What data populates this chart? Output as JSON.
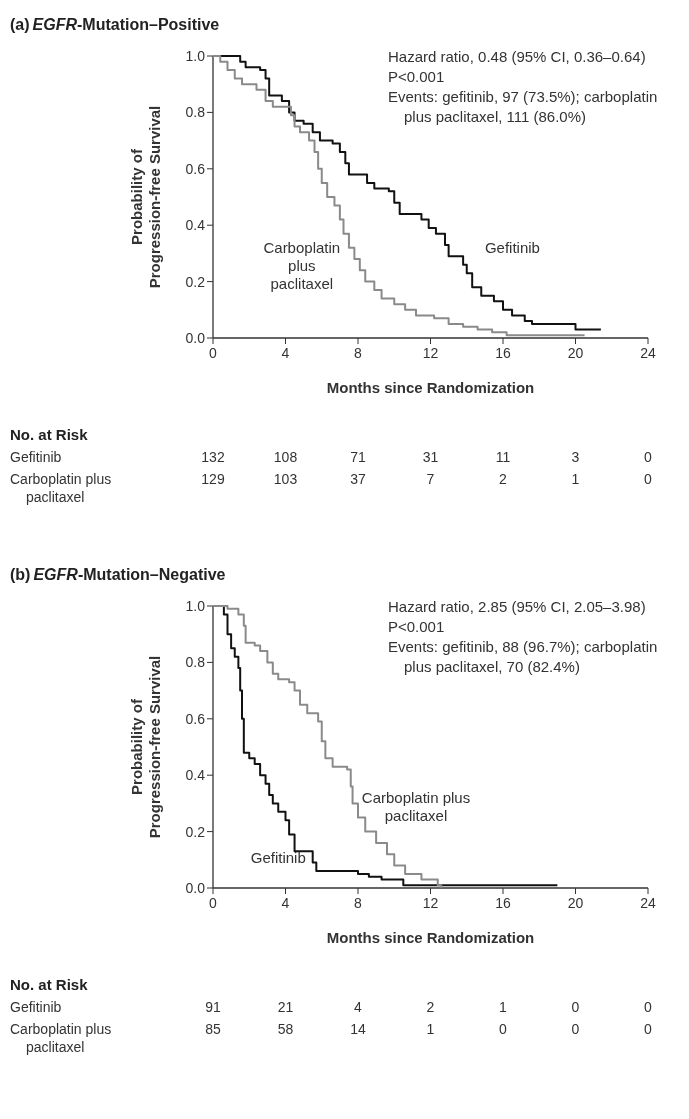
{
  "chart_data": [
    {
      "type": "step",
      "title": "(a) EGFR-Mutation–Positive",
      "xlabel": "Months since Randomization",
      "ylabel": "Probability of Progression-free Survival",
      "xlim": [
        0,
        24
      ],
      "xticks": [
        0,
        4,
        8,
        12,
        16,
        20,
        24
      ],
      "ylim": [
        0,
        1
      ],
      "yticks": [
        {
          "value": 0,
          "label": "0.0"
        },
        {
          "value": 0.2,
          "label": "0.2"
        },
        {
          "value": 0.4,
          "label": "0.4"
        },
        {
          "value": 0.6,
          "label": "0.6"
        },
        {
          "value": 0.8,
          "label": "0.8"
        },
        {
          "value": 1,
          "label": "1.0"
        }
      ],
      "grid": false,
      "series": [
        {
          "name": "Gefitinib",
          "color": "#111111",
          "x": [
            0,
            1.5,
            1.8,
            2.6,
            2.9,
            3.1,
            3.8,
            4.2,
            4.5,
            5.0,
            5.5,
            5.9,
            6.6,
            7.0,
            7.3,
            7.5,
            8.5,
            8.9,
            9.7,
            10.0,
            10.3,
            11.5,
            11.9,
            12.3,
            12.8,
            13.0,
            13.8,
            14.0,
            14.3,
            14.8,
            15.5,
            16.0,
            16.5,
            17.2,
            17.6,
            20.0,
            21.4
          ],
          "values": [
            1.0,
            0.98,
            0.96,
            0.95,
            0.92,
            0.86,
            0.84,
            0.8,
            0.77,
            0.76,
            0.73,
            0.7,
            0.69,
            0.66,
            0.62,
            0.58,
            0.55,
            0.53,
            0.52,
            0.48,
            0.44,
            0.42,
            0.39,
            0.37,
            0.33,
            0.29,
            0.26,
            0.23,
            0.18,
            0.15,
            0.13,
            0.1,
            0.08,
            0.06,
            0.05,
            0.03,
            0.03
          ]
        },
        {
          "name": "Carboplatin plus paclitaxel",
          "color": "#8a8a8a",
          "x": [
            0,
            0.4,
            0.8,
            1.2,
            1.6,
            2.4,
            2.9,
            3.3,
            4.3,
            4.5,
            4.8,
            5.3,
            5.6,
            5.8,
            6.0,
            6.3,
            6.7,
            7.0,
            7.2,
            7.5,
            7.8,
            8.1,
            8.4,
            8.9,
            9.3,
            10.0,
            10.6,
            11.2,
            12.2,
            13.0,
            13.8,
            14.6,
            15.4,
            16.2,
            20.5
          ],
          "values": [
            1.0,
            0.98,
            0.95,
            0.92,
            0.9,
            0.88,
            0.84,
            0.82,
            0.79,
            0.75,
            0.73,
            0.7,
            0.66,
            0.6,
            0.55,
            0.5,
            0.47,
            0.42,
            0.37,
            0.32,
            0.28,
            0.24,
            0.2,
            0.17,
            0.14,
            0.12,
            0.1,
            0.08,
            0.07,
            0.05,
            0.04,
            0.03,
            0.02,
            0.01,
            0.01
          ]
        }
      ],
      "annotations": [
        "Hazard ratio, 0.48 (95% CI, 0.36–0.64)",
        "P<0.001",
        "Events: gefitinib, 97 (73.5%); carboplatin plus paclitaxel, 111 (86.0%)",
        "No. at Risk",
        "Gefitinib",
        "Carboplatin plus paclitaxel",
        "132",
        "108",
        "71",
        "31",
        "11",
        "3",
        "0",
        "129",
        "103",
        "37",
        "7",
        "2",
        "1",
        "0"
      ]
    },
    {
      "type": "step",
      "title": "(b) EGFR-Mutation–Negative",
      "xlabel": "Months since Randomization",
      "ylabel": "Probability of Progression-free Survival",
      "xlim": [
        0,
        24
      ],
      "xticks": [
        0,
        4,
        8,
        12,
        16,
        20,
        24
      ],
      "ylim": [
        0,
        1
      ],
      "yticks": [
        {
          "value": 0,
          "label": "0.0"
        },
        {
          "value": 0.2,
          "label": "0.2"
        },
        {
          "value": 0.4,
          "label": "0.4"
        },
        {
          "value": 0.6,
          "label": "0.6"
        },
        {
          "value": 0.8,
          "label": "0.8"
        },
        {
          "value": 1,
          "label": "1.0"
        }
      ],
      "grid": false,
      "series": [
        {
          "name": "Gefitinib",
          "color": "#111111",
          "x": [
            0,
            0.6,
            0.8,
            1.0,
            1.2,
            1.4,
            1.5,
            1.6,
            1.7,
            2.0,
            2.3,
            2.6,
            2.9,
            3.1,
            3.3,
            3.6,
            4.0,
            4.2,
            4.5,
            5.3,
            5.5,
            5.7,
            8.0,
            8.6,
            9.3,
            10.5,
            19.0
          ],
          "values": [
            1.0,
            0.97,
            0.9,
            0.85,
            0.82,
            0.78,
            0.7,
            0.6,
            0.48,
            0.46,
            0.44,
            0.4,
            0.37,
            0.33,
            0.3,
            0.27,
            0.24,
            0.19,
            0.13,
            0.13,
            0.09,
            0.06,
            0.05,
            0.04,
            0.03,
            0.01,
            0.01
          ]
        },
        {
          "name": "Carboplatin plus paclitaxel",
          "color": "#8a8a8a",
          "x": [
            0,
            0.8,
            1.4,
            1.7,
            1.8,
            2.3,
            2.6,
            3.0,
            3.3,
            3.6,
            4.2,
            4.5,
            4.8,
            5.2,
            5.8,
            6.0,
            6.2,
            6.6,
            7.4,
            7.6,
            7.7,
            8.0,
            8.4,
            9.0,
            9.6,
            10.0,
            10.6,
            11.5,
            12.4,
            12.6
          ],
          "values": [
            1.0,
            0.99,
            0.97,
            0.93,
            0.87,
            0.86,
            0.84,
            0.8,
            0.76,
            0.74,
            0.73,
            0.7,
            0.65,
            0.62,
            0.59,
            0.52,
            0.46,
            0.43,
            0.42,
            0.36,
            0.3,
            0.25,
            0.2,
            0.16,
            0.12,
            0.08,
            0.05,
            0.03,
            0.01,
            0.0
          ]
        }
      ],
      "annotations": [
        "Hazard ratio, 2.85 (95% CI, 2.05–3.98)",
        "P<0.001",
        "Events: gefitinib, 88 (96.7%); carboplatin plus paclitaxel, 70 (82.4%)",
        "No. at Risk",
        "Gefitinib",
        "Carboplatin plus paclitaxel",
        "91",
        "21",
        "4",
        "2",
        "1",
        "0",
        "0",
        "85",
        "58",
        "14",
        "1",
        "0",
        "0",
        "0"
      ]
    }
  ]
}
